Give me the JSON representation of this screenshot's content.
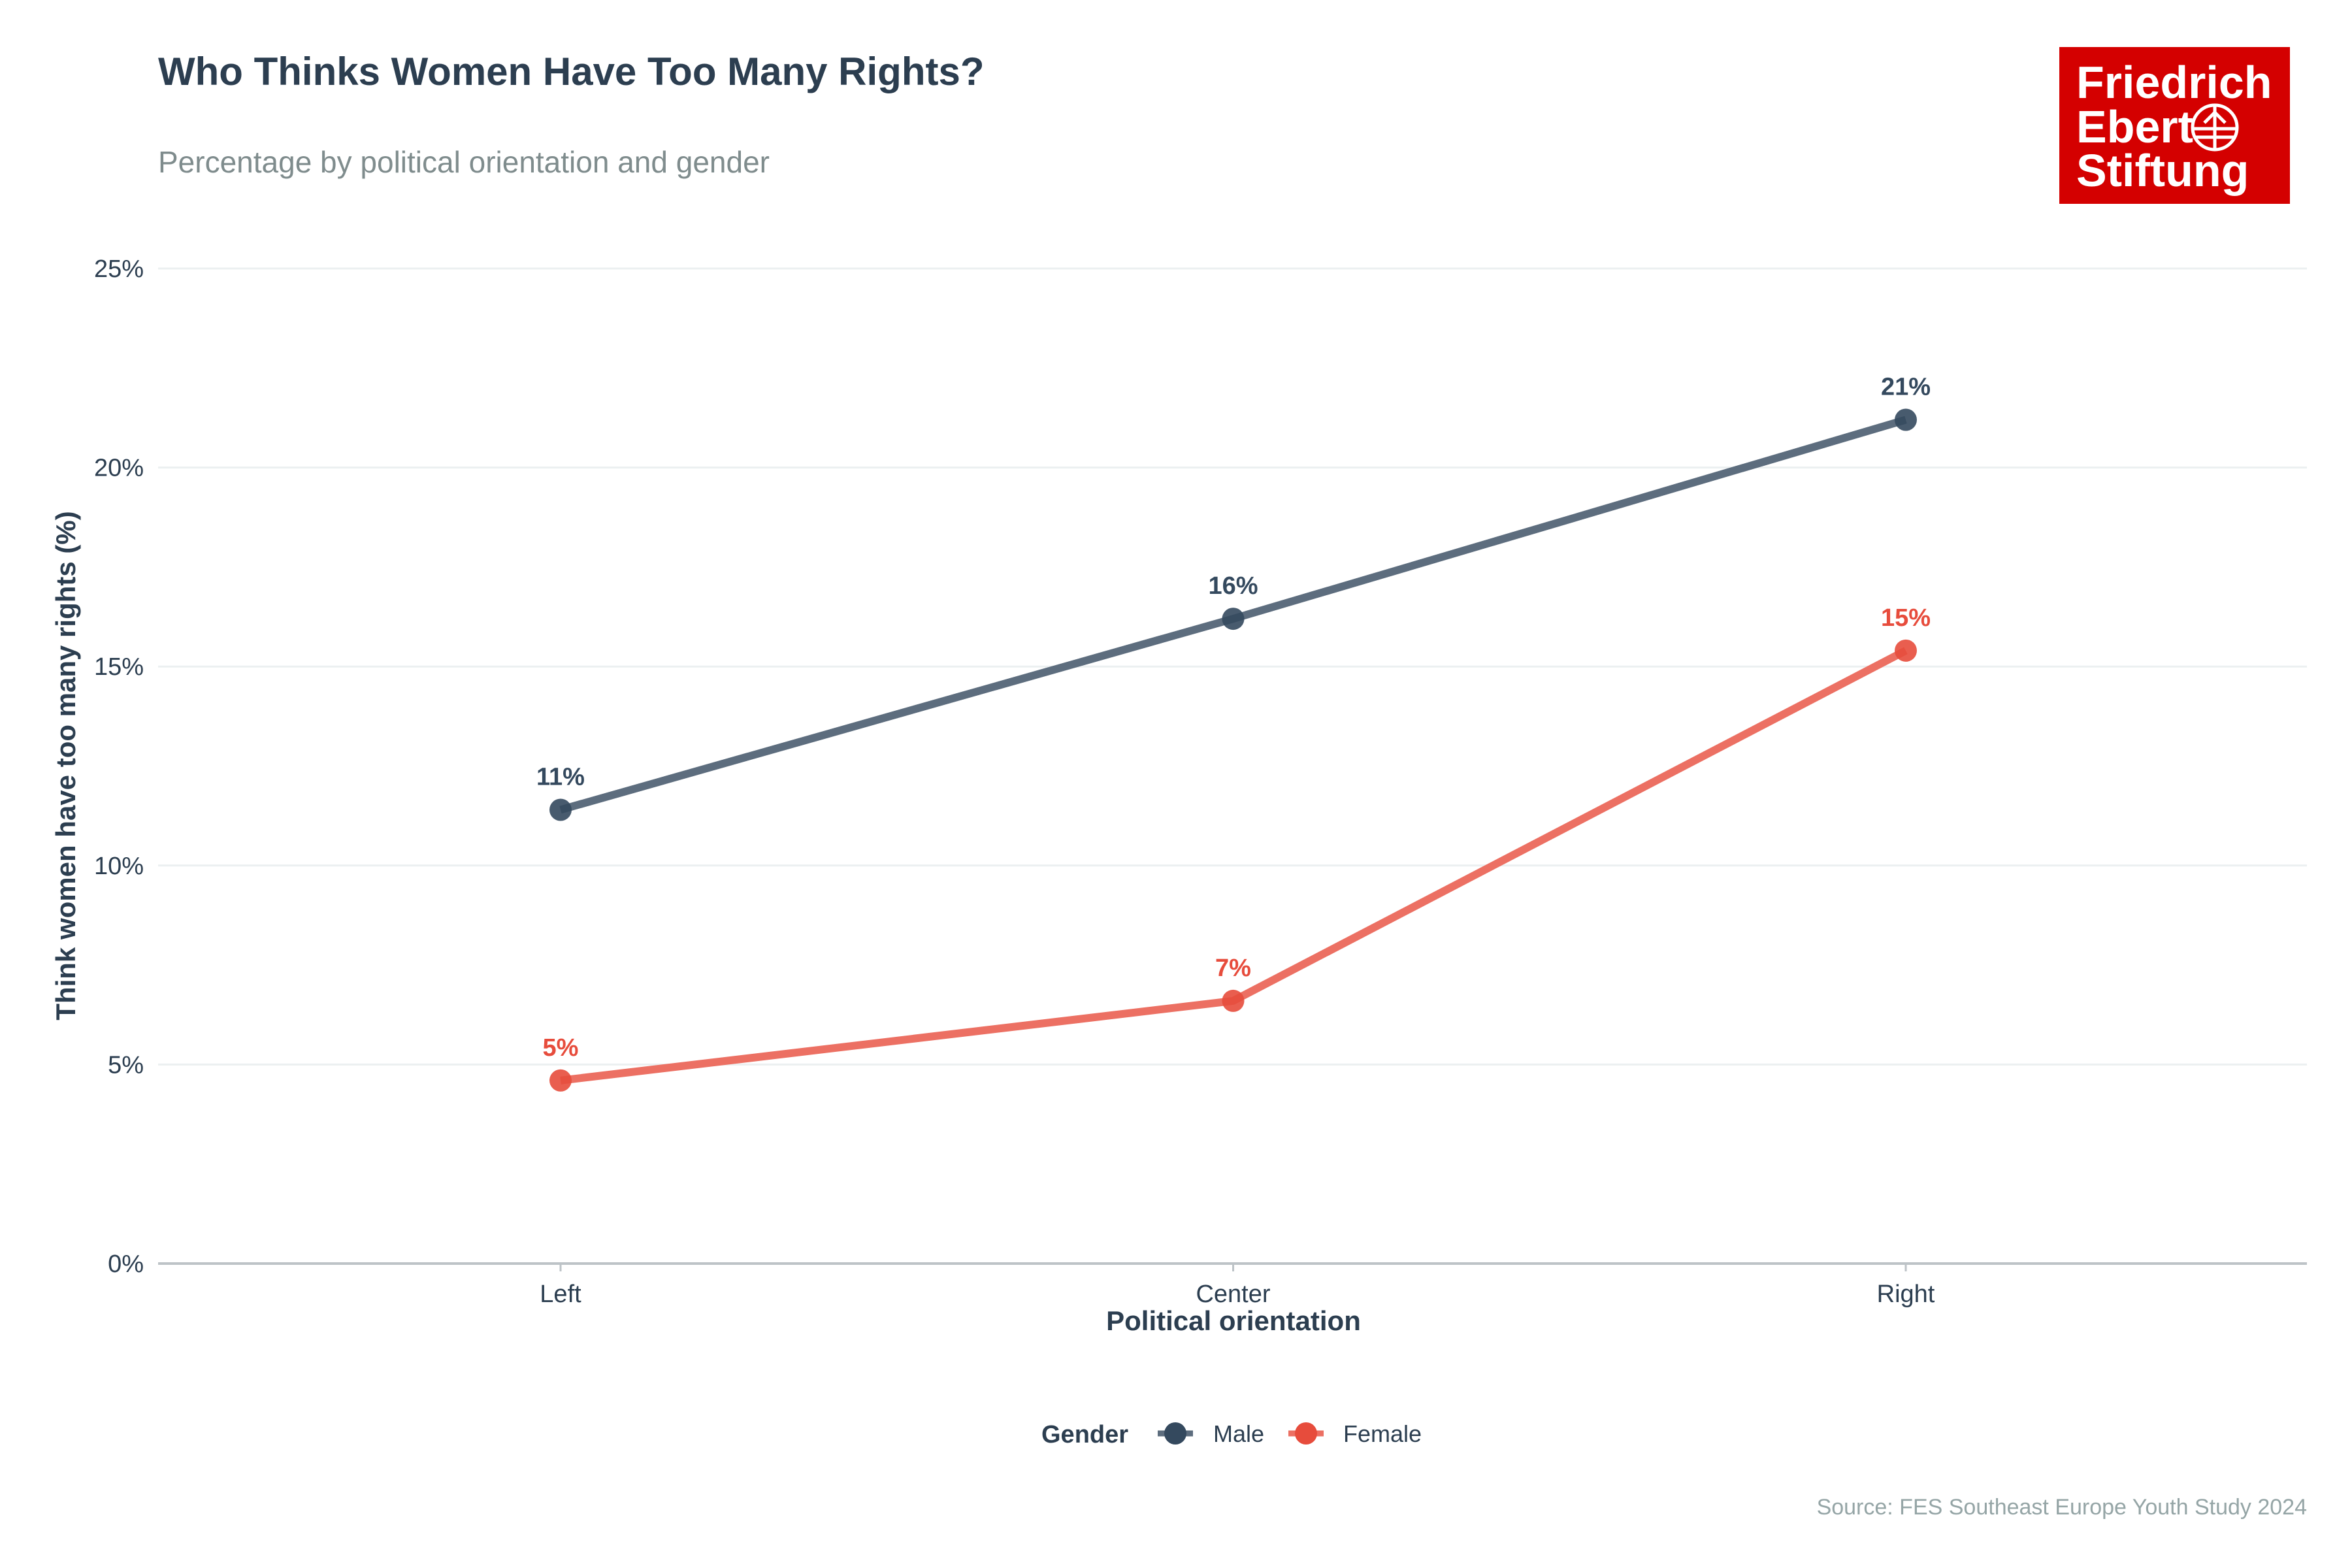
{
  "header": {
    "title": "Who Thinks Women Have Too Many Rights?",
    "subtitle": "Percentage by political orientation and gender"
  },
  "logo": {
    "lines": [
      "Friedrich",
      "Ebert",
      "Stiftung"
    ],
    "background": "#d40000"
  },
  "chart_data": {
    "type": "line",
    "title": "Who Thinks Women Have Too Many Rights?",
    "subtitle": "Percentage by political orientation and gender",
    "xlabel": "Political orientation",
    "ylabel": "Think women have too many rights (%)",
    "categories": [
      "Left",
      "Center",
      "Right"
    ],
    "ylim": [
      0,
      25
    ],
    "yticks": [
      0,
      5,
      10,
      15,
      20,
      25
    ],
    "ytick_labels": [
      "0%",
      "5%",
      "10%",
      "15%",
      "20%",
      "25%"
    ],
    "grid": true,
    "legend_position": "bottom",
    "legend_title": "Gender",
    "series": [
      {
        "name": "Male",
        "color": "#34495e",
        "values": [
          11.4,
          16.2,
          21.2
        ],
        "labels": [
          "11%",
          "16%",
          "21%"
        ]
      },
      {
        "name": "Female",
        "color": "#e74c3c",
        "values": [
          4.6,
          6.6,
          15.4
        ],
        "labels": [
          "5%",
          "7%",
          "15%"
        ]
      }
    ]
  },
  "footer": {
    "source": "Source: FES Southeast Europe Youth Study 2024"
  }
}
